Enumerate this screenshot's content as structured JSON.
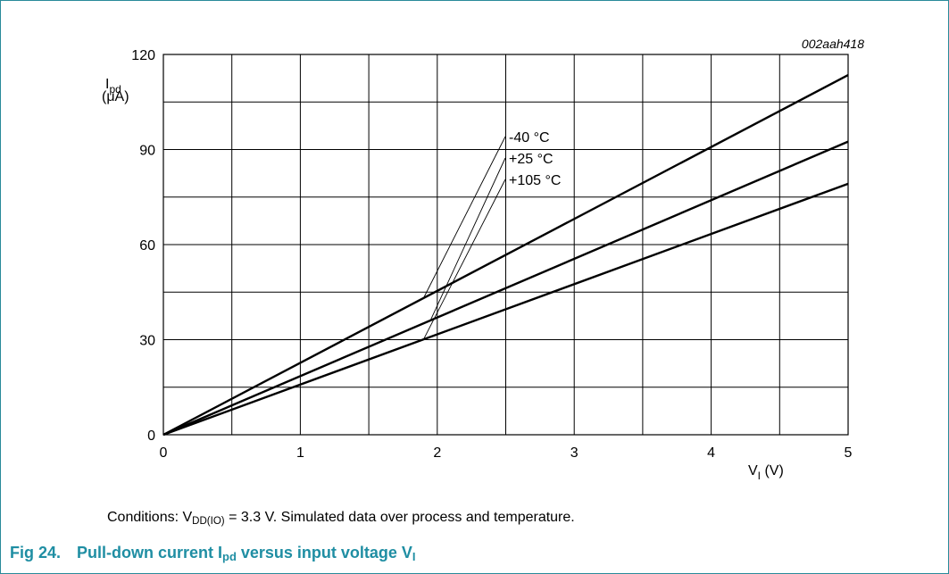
{
  "chart_data": {
    "type": "line",
    "figure_id": "002aah418",
    "ylabel": {
      "symbol": "I",
      "sub": "pd",
      "unit": "(μA)"
    },
    "xlabel": {
      "symbol": "V",
      "sub": "I",
      "unit": "(V)"
    },
    "xlim": [
      0,
      5
    ],
    "ylim": [
      0,
      120
    ],
    "x_ticks": [
      0,
      1,
      2,
      3,
      4,
      5
    ],
    "y_ticks": [
      0,
      30,
      60,
      90,
      120
    ],
    "grid": true,
    "series": [
      {
        "name": "-40 °C",
        "x": [
          0,
          5
        ],
        "y": [
          0,
          113.5
        ]
      },
      {
        "name": "+25 °C",
        "x": [
          0,
          5
        ],
        "y": [
          0,
          92.5
        ]
      },
      {
        "name": "+105 °C",
        "x": [
          0,
          5
        ],
        "y": [
          0,
          79.2
        ]
      }
    ],
    "label_anchor_x": [
      1.9,
      1.95,
      1.9
    ]
  },
  "conditions": {
    "prefix": "Conditions: V",
    "sub": "DD(IO)",
    "suffix": " = 3.3 V. Simulated data over process and temperature."
  },
  "caption": {
    "number": "Fig 24.",
    "text1": "Pull-down current I",
    "sub1": "pd",
    "text2": " versus input voltage V",
    "sub2": "I"
  }
}
